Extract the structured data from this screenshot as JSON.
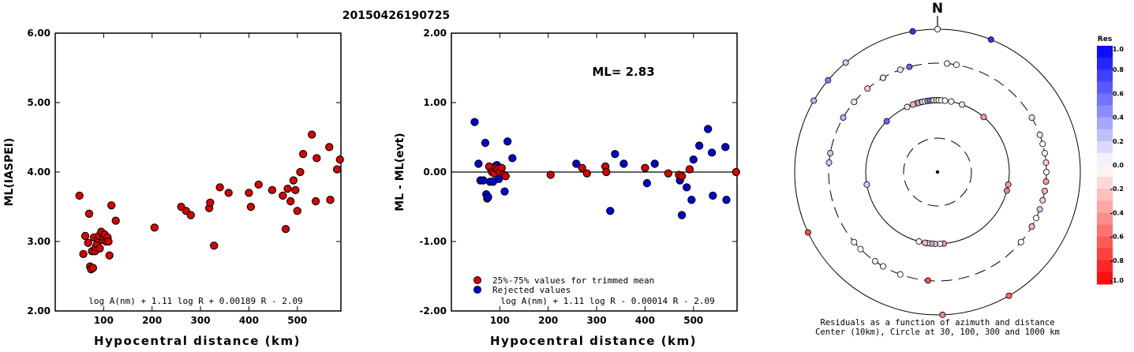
{
  "event_id": "20150426190725",
  "chart_data": [
    {
      "type": "scatter",
      "panel": "ml-vs-distance",
      "ylabel": "ML(IASPEI)",
      "xlabel": "Hypocentral distance (km)",
      "xlim": [
        0,
        590
      ],
      "ylim": [
        2.0,
        6.0
      ],
      "xticks": [
        100,
        200,
        300,
        400,
        500
      ],
      "xtick_labels": [
        "100",
        "200",
        "300",
        "400",
        "500"
      ],
      "yticks": [
        2.0,
        3.0,
        4.0,
        5.0,
        6.0
      ],
      "ytick_labels": [
        "2.00",
        "3.00",
        "4.00",
        "5.00",
        "6.00"
      ],
      "formula": "log A(nm) + 1.11 log R + 0.00189 R - 2.09",
      "colors": {
        "points": "#dd0000"
      },
      "points": [
        [
          50,
          3.66
        ],
        [
          58,
          2.82
        ],
        [
          62,
          3.08
        ],
        [
          68,
          2.98
        ],
        [
          70,
          3.4
        ],
        [
          72,
          2.64
        ],
        [
          74,
          2.6
        ],
        [
          76,
          2.86
        ],
        [
          78,
          2.62
        ],
        [
          80,
          3.06
        ],
        [
          82,
          2.86
        ],
        [
          84,
          2.92
        ],
        [
          86,
          2.96
        ],
        [
          88,
          3.04
        ],
        [
          90,
          3.08
        ],
        [
          92,
          2.9
        ],
        [
          95,
          3.14
        ],
        [
          98,
          3.02
        ],
        [
          100,
          3.06
        ],
        [
          102,
          3.1
        ],
        [
          105,
          3.0
        ],
        [
          108,
          3.06
        ],
        [
          110,
          3.0
        ],
        [
          112,
          2.8
        ],
        [
          116,
          3.52
        ],
        [
          125,
          3.3
        ],
        [
          205,
          3.2
        ],
        [
          260,
          3.5
        ],
        [
          270,
          3.44
        ],
        [
          280,
          3.38
        ],
        [
          318,
          3.48
        ],
        [
          320,
          3.56
        ],
        [
          328,
          2.94
        ],
        [
          340,
          3.78
        ],
        [
          358,
          3.7
        ],
        [
          400,
          3.7
        ],
        [
          404,
          3.5
        ],
        [
          420,
          3.82
        ],
        [
          448,
          3.74
        ],
        [
          470,
          3.66
        ],
        [
          476,
          3.18
        ],
        [
          480,
          3.76
        ],
        [
          486,
          3.58
        ],
        [
          492,
          3.88
        ],
        [
          496,
          3.74
        ],
        [
          500,
          3.44
        ],
        [
          506,
          4.0
        ],
        [
          512,
          4.26
        ],
        [
          530,
          4.54
        ],
        [
          538,
          3.58
        ],
        [
          540,
          4.2
        ],
        [
          566,
          4.36
        ],
        [
          568,
          3.6
        ],
        [
          582,
          4.04
        ],
        [
          588,
          4.18
        ]
      ]
    },
    {
      "type": "scatter",
      "panel": "residual-vs-distance",
      "ylabel": "ML - ML(evt)",
      "xlabel": "Hypocentral distance (km)",
      "xlim": [
        0,
        590
      ],
      "ylim": [
        -2.0,
        2.0
      ],
      "xticks": [
        100,
        200,
        300,
        400,
        500
      ],
      "xtick_labels": [
        "100",
        "200",
        "300",
        "400",
        "500"
      ],
      "yticks": [
        -2.0,
        -1.0,
        0.0,
        1.0,
        2.0
      ],
      "ytick_labels": [
        "-2.00",
        "-1.00",
        "0.00",
        "1.00",
        "2.00"
      ],
      "ml_label": "ML= 2.83",
      "formula": "log A(nm) + 1.11 log R - 0.00014 R - 2.09",
      "legend": [
        {
          "label": "25%-75% values for trimmed mean",
          "color": "#dd0000"
        },
        {
          "label": "Rejected values",
          "color": "#0000dd"
        }
      ],
      "used_points": [
        [
          78,
          0.08
        ],
        [
          84,
          0.0
        ],
        [
          88,
          -0.02
        ],
        [
          92,
          0.06
        ],
        [
          96,
          0.04
        ],
        [
          100,
          0.0
        ],
        [
          104,
          0.06
        ],
        [
          108,
          -0.04
        ],
        [
          112,
          -0.06
        ],
        [
          205,
          -0.04
        ],
        [
          270,
          0.06
        ],
        [
          280,
          -0.02
        ],
        [
          318,
          0.08
        ],
        [
          320,
          0.0
        ],
        [
          400,
          0.06
        ],
        [
          448,
          -0.02
        ],
        [
          470,
          -0.04
        ],
        [
          476,
          -0.06
        ],
        [
          492,
          0.04
        ],
        [
          588,
          0.0
        ]
      ],
      "rejected_points": [
        [
          48,
          0.72
        ],
        [
          56,
          0.12
        ],
        [
          60,
          -0.12
        ],
        [
          66,
          -0.12
        ],
        [
          70,
          0.42
        ],
        [
          72,
          -0.32
        ],
        [
          74,
          -0.38
        ],
        [
          76,
          -0.36
        ],
        [
          80,
          -0.14
        ],
        [
          82,
          0.04
        ],
        [
          86,
          -0.14
        ],
        [
          90,
          0.08
        ],
        [
          94,
          0.1
        ],
        [
          98,
          -0.1
        ],
        [
          102,
          0.04
        ],
        [
          110,
          -0.28
        ],
        [
          116,
          0.44
        ],
        [
          126,
          0.2
        ],
        [
          258,
          0.12
        ],
        [
          328,
          -0.56
        ],
        [
          338,
          0.26
        ],
        [
          356,
          0.12
        ],
        [
          404,
          -0.16
        ],
        [
          420,
          0.12
        ],
        [
          472,
          -0.12
        ],
        [
          476,
          -0.62
        ],
        [
          486,
          -0.22
        ],
        [
          496,
          -0.4
        ],
        [
          500,
          0.18
        ],
        [
          512,
          0.38
        ],
        [
          530,
          0.62
        ],
        [
          538,
          0.28
        ],
        [
          540,
          -0.34
        ],
        [
          566,
          0.36
        ],
        [
          568,
          -0.4
        ]
      ]
    },
    {
      "type": "scatter",
      "panel": "azimuth-distance-residuals",
      "north_label": "N",
      "caption_line1": "Residuals as a function of azimuth and distance",
      "caption_line2": "Center (10km), Circle at 30, 100, 300 and 1000 km",
      "rings_km": [
        30,
        100,
        300,
        1000
      ],
      "colorbar": {
        "title": "Res",
        "labels": [
          "1.0",
          "0.8",
          "0.6",
          "0.4",
          "0.2",
          "0.0",
          "-0.2",
          "-0.4",
          "-0.6",
          "-0.8",
          "-1.0"
        ],
        "levels": [
          1.0,
          0.8,
          0.6,
          0.4,
          0.2,
          0.0,
          -0.2,
          -0.4,
          -0.6,
          -0.8,
          -1.0
        ]
      },
      "points_azimuth_deg_distance_km_residual": [
        [
          -17,
          100,
          0.2
        ],
        [
          -15,
          100,
          0.1
        ],
        [
          -13,
          100,
          0.05
        ],
        [
          -12,
          100,
          -0.1
        ],
        [
          -10,
          100,
          0.0
        ],
        [
          -8,
          100,
          0.4
        ],
        [
          -6,
          100,
          0.5
        ],
        [
          -4,
          100,
          0.0
        ],
        [
          -3,
          100,
          0.05
        ],
        [
          -1,
          100,
          -0.2
        ],
        [
          1,
          100,
          0.0
        ],
        [
          3,
          100,
          0.0
        ],
        [
          6,
          100,
          0.0
        ],
        [
          11,
          100,
          0.0
        ],
        [
          -20,
          100,
          -0.3
        ],
        [
          -25,
          100,
          -0.1
        ],
        [
          -45,
          100,
          0.6
        ],
        [
          20,
          100,
          0.1
        ],
        [
          40,
          100,
          -0.4
        ],
        [
          -60,
          300,
          0.3
        ],
        [
          -30,
          300,
          0.1
        ],
        [
          -20,
          300,
          0.1
        ],
        [
          -50,
          1000,
          0.5
        ],
        [
          -40,
          1000,
          0.2
        ],
        [
          -10,
          1000,
          0.8
        ],
        [
          0,
          1000,
          0.0
        ],
        [
          5,
          300,
          0.0
        ],
        [
          10,
          300,
          0.0
        ],
        [
          22,
          1000,
          0.8
        ],
        [
          60,
          300,
          0.1
        ],
        [
          70,
          300,
          -0.1
        ],
        [
          75,
          300,
          0.0
        ],
        [
          80,
          300,
          0.0
        ],
        [
          85,
          300,
          -0.2
        ],
        [
          90,
          300,
          0.05
        ],
        [
          95,
          300,
          -0.4
        ],
        [
          100,
          300,
          -0.3
        ],
        [
          105,
          300,
          -0.2
        ],
        [
          110,
          300,
          0.2
        ],
        [
          115,
          300,
          0.0
        ],
        [
          120,
          300,
          -0.3
        ],
        [
          100,
          100,
          -0.4
        ],
        [
          105,
          100,
          -0.5
        ],
        [
          130,
          300,
          0.0
        ],
        [
          150,
          1000,
          -0.6
        ],
        [
          175,
          100,
          -0.4
        ],
        [
          178,
          100,
          0.1
        ],
        [
          182,
          100,
          -0.3
        ],
        [
          185,
          100,
          0.3
        ],
        [
          188,
          100,
          -0.2
        ],
        [
          190,
          100,
          -0.3
        ],
        [
          195,
          100,
          0.0
        ],
        [
          185,
          300,
          -0.7
        ],
        [
          178,
          1000,
          -0.5
        ],
        [
          200,
          300,
          0.0
        ],
        [
          210,
          300,
          0.0
        ],
        [
          215,
          300,
          0.0
        ],
        [
          225,
          300,
          0.0
        ],
        [
          230,
          300,
          0.0
        ],
        [
          245,
          1000,
          -0.7
        ],
        [
          260,
          100,
          0.2
        ],
        [
          275,
          300,
          0.2
        ],
        [
          280,
          300,
          0.2
        ],
        [
          300,
          1000,
          0.3
        ],
        [
          310,
          300,
          0.1
        ],
        [
          320,
          300,
          -0.2
        ],
        [
          330,
          300,
          0.05
        ],
        [
          345,
          300,
          0.6
        ]
      ]
    }
  ]
}
